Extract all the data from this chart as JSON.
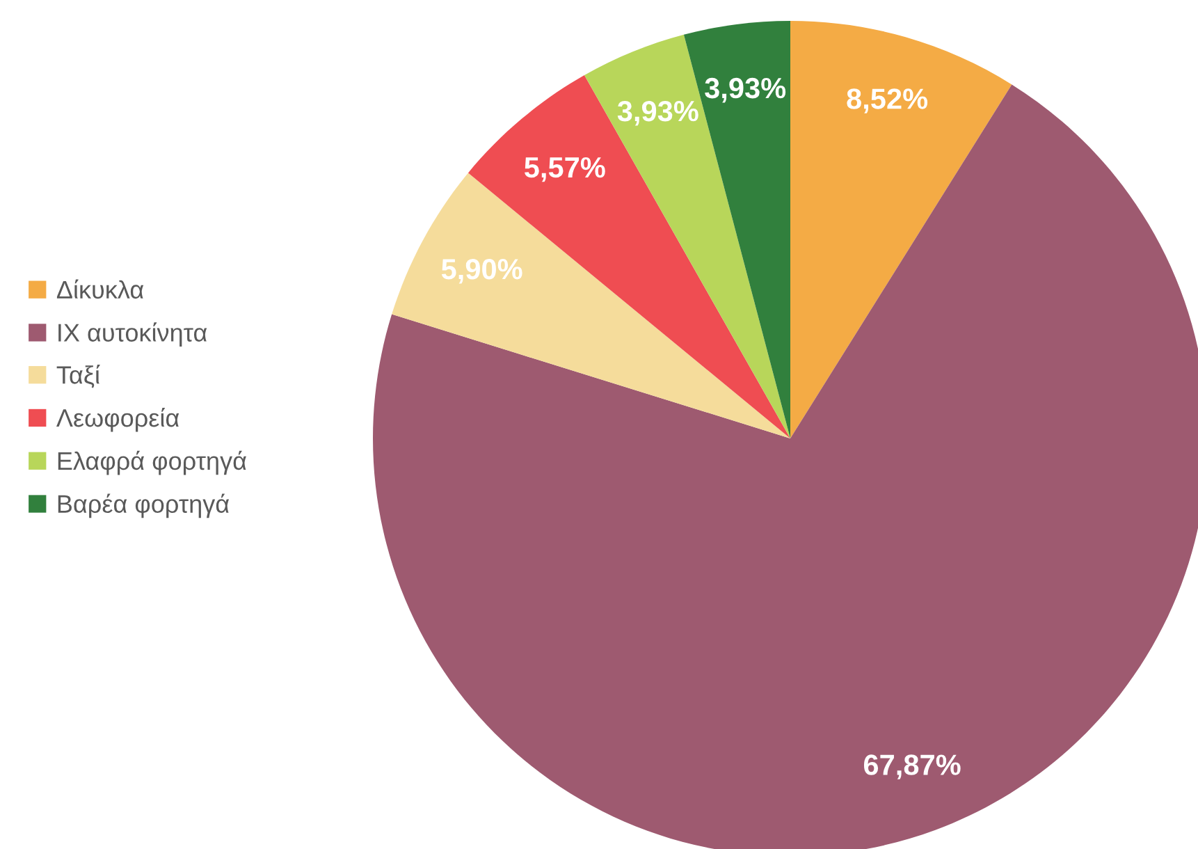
{
  "chart_data": {
    "type": "pie",
    "categories": [
      "Δίκυκλα",
      "ΙΧ αυτοκίνητα",
      "Ταξί",
      "Λεωφορεία",
      "Ελαφρά φορτηγά",
      "Βαρέα φορτηγά"
    ],
    "values": [
      8.52,
      67.87,
      5.9,
      5.57,
      3.93,
      3.93
    ],
    "value_labels": [
      "8,52%",
      "67,87%",
      "5,90%",
      "5,57%",
      "3,93%",
      "3,93%"
    ],
    "colors": [
      "#f4ab45",
      "#9e5a70",
      "#f5dc9b",
      "#ef4d52",
      "#b8d65a",
      "#31803d"
    ],
    "legend": "left"
  }
}
